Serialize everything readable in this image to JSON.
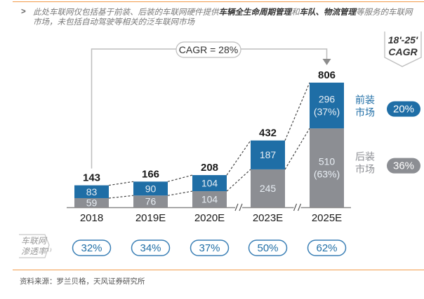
{
  "note": {
    "bullet": ">",
    "parts": [
      {
        "text": "此处车联网仅包括基于前装、后装的车联网硬件提供",
        "bold": false
      },
      {
        "text": "车辆全生命周期管理",
        "bold": true
      },
      {
        "text": "和",
        "bold": false
      },
      {
        "text": "车队、物流管理",
        "bold": true
      },
      {
        "text": "等服务的车联网市场，未包括自动驾驶等相关的泛车联网市场",
        "bold": false
      }
    ]
  },
  "source": "资料来源：罗兰贝格，天风证券研究所",
  "colors": {
    "front": "#1f6ea6",
    "rear": "#8c8e93",
    "accent_rule": "#f39a4a",
    "pill_border": "#3a7fb5"
  },
  "chart_data": {
    "type": "bar",
    "stacked": true,
    "title": "",
    "categories": [
      "2018",
      "2019E",
      "2020E",
      "2023E",
      "2025E"
    ],
    "axis_breaks_before": [
      "2023E",
      "2025E"
    ],
    "series": [
      {
        "name": "后装市场",
        "key": "rear",
        "values": [
          59,
          76,
          104,
          245,
          510
        ],
        "labels": [
          "59",
          "76",
          "104",
          "245",
          "510\n(63%)"
        ]
      },
      {
        "name": "前装市场",
        "key": "front",
        "values": [
          83,
          90,
          104,
          187,
          296
        ],
        "labels": [
          "83",
          "90",
          "104",
          "187",
          "296\n(37%)"
        ]
      }
    ],
    "totals": [
      143,
      166,
      208,
      432,
      806
    ],
    "cagr_annotation": "CAGR = 28%",
    "cagr_header": [
      "18'-25'",
      "CAGR"
    ],
    "segment_cagr": [
      {
        "label": [
          "前装",
          "市场"
        ],
        "value": "20%",
        "series": "front"
      },
      {
        "label": [
          "后装",
          "市场"
        ],
        "value": "36%",
        "series": "rear"
      }
    ],
    "penetration": {
      "label": [
        "车联网",
        "渗透率¹⁾"
      ],
      "values": [
        "32%",
        "34%",
        "37%",
        "50%",
        "62%"
      ]
    },
    "xlabel": "",
    "ylabel": "",
    "ylim": [
      0,
      806
    ],
    "grid": false,
    "legend": "right"
  }
}
